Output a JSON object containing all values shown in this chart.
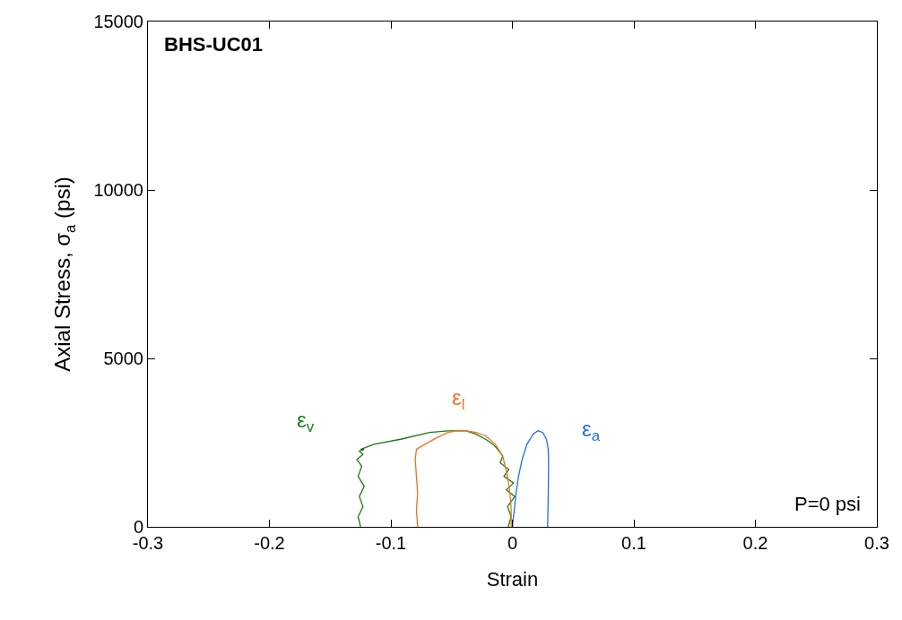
{
  "chart_data": {
    "type": "line",
    "xlabel": "Strain",
    "ylabel": "Axial Stress, σ$_{a}$ (psi)",
    "xlim": [
      -0.3,
      0.3
    ],
    "xticks": [
      -0.3,
      -0.2,
      -0.1,
      0,
      0.1,
      0.2,
      0.3
    ],
    "ylim": [
      0,
      15000
    ],
    "yticks": [
      0,
      5000,
      10000,
      15000
    ],
    "legend": false,
    "marker": "none",
    "line_style": "solid",
    "series": [
      {
        "name": "ε$_{v}$",
        "color": "#1a7a1a",
        "x": [
          -0.125,
          -0.127,
          -0.123,
          -0.126,
          -0.122,
          -0.127,
          -0.124,
          -0.128,
          -0.123,
          -0.126,
          -0.122,
          -0.125,
          -0.114,
          -0.092,
          -0.068,
          -0.053,
          -0.045,
          -0.038,
          -0.03,
          -0.022,
          -0.016,
          -0.012,
          -0.008,
          -0.01,
          -0.003,
          -0.007,
          0.001,
          -0.005,
          0.002,
          -0.004,
          -0.001,
          -0.0035
        ],
        "values": [
          0,
          300,
          600,
          900,
          1200,
          1500,
          1800,
          2000,
          2150,
          2250,
          2300,
          2300,
          2450,
          2600,
          2800,
          2850,
          2850,
          2850,
          2750,
          2600,
          2450,
          2300,
          2100,
          1900,
          1700,
          1500,
          1300,
          1100,
          900,
          600,
          300,
          0
        ]
      },
      {
        "name": "ε$_{l}$",
        "color": "#f07020",
        "x": [
          -0.078,
          -0.079,
          -0.078,
          -0.079,
          -0.08,
          -0.079,
          -0.072,
          -0.062,
          -0.053,
          -0.045,
          -0.038,
          -0.03,
          -0.022,
          -0.014,
          -0.008,
          -0.004,
          -0.002,
          -0.001,
          -0.001
        ],
        "values": [
          0,
          500,
          1000,
          1500,
          2000,
          2300,
          2450,
          2650,
          2800,
          2850,
          2850,
          2800,
          2700,
          2450,
          2100,
          1500,
          1000,
          500,
          0
        ]
      },
      {
        "name": "ε$_{a}$",
        "color": "#1f6fef",
        "x": [
          0,
          0.0015,
          0.003,
          0.005,
          0.008,
          0.012,
          0.017,
          0.021,
          0.025,
          0.028,
          0.0295,
          0.0298,
          0.0295,
          0.029
        ],
        "values": [
          0,
          500,
          1000,
          1500,
          2000,
          2450,
          2750,
          2850,
          2800,
          2600,
          2300,
          1800,
          1000,
          0
        ]
      }
    ],
    "annotations": [
      "BHS-UC01",
      "P=0 psi"
    ]
  }
}
